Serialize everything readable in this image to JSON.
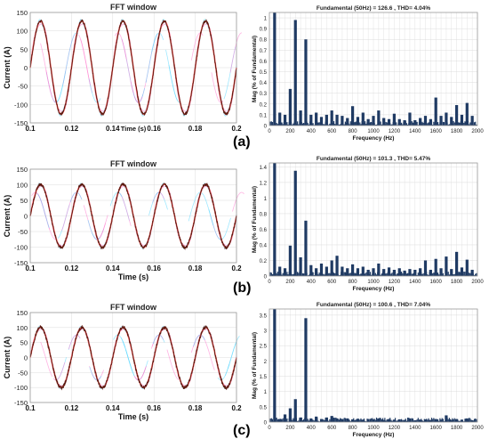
{
  "panel_labels": [
    "(a)",
    "(b)",
    "(c)"
  ],
  "colors": {
    "waveform_main": "#5a1a10",
    "waveform_trace": "#ff6060",
    "harmonics_halo_pink": "#ff80d0",
    "harmonics_halo_cyan": "#60d8ff",
    "spectrum_bars": "#1f3a63",
    "grid": "#dcdcdc"
  },
  "chart_data": [
    {
      "panel": "(a)",
      "type": "line",
      "title": "FFT window",
      "xlabel": "Time (s)",
      "ylabel": "Current (A)",
      "xlim": [
        0.1,
        0.2
      ],
      "ylim": [
        -150,
        150
      ],
      "xticks": [
        "0.1",
        "0.12",
        "0.14",
        "0.16",
        "0.18",
        "0.2"
      ],
      "yticks": [
        "150",
        "100",
        "50",
        "0",
        "-50",
        "-100",
        "-150"
      ],
      "amplitude": 126.6,
      "frequency_hz": 50,
      "noise": 4,
      "grid": true
    },
    {
      "panel": "(a)",
      "type": "bar",
      "title": "Fundamental (50Hz) = 126.6 , THD= 4.04%",
      "xlabel": "Frequency (Hz)",
      "ylabel": "Mag (% of Fundamental)",
      "xlim": [
        0,
        2000
      ],
      "ylim": [
        0,
        1.05
      ],
      "xticks": [
        "0",
        "200",
        "400",
        "600",
        "800",
        "1000",
        "1200",
        "1400",
        "1600",
        "1800",
        "2000"
      ],
      "yticks": [
        "1",
        "0.9",
        "0.8",
        "0.7",
        "0.6",
        "0.5",
        "0.4",
        "0.3",
        "0.2",
        "0.1",
        "0"
      ],
      "x": [
        50,
        100,
        150,
        200,
        250,
        300,
        350,
        400,
        450,
        500,
        550,
        600,
        650,
        700,
        750,
        800,
        850,
        900,
        950,
        1000,
        1050,
        1100,
        1150,
        1200,
        1250,
        1300,
        1350,
        1400,
        1450,
        1500,
        1550,
        1600,
        1650,
        1700,
        1750,
        1800,
        1850,
        1900,
        1950
      ],
      "values": [
        1.05,
        0.12,
        0.1,
        0.34,
        0.98,
        0.14,
        0.8,
        0.1,
        0.12,
        0.08,
        0.1,
        0.14,
        0.1,
        0.09,
        0.07,
        0.18,
        0.08,
        0.12,
        0.06,
        0.09,
        0.14,
        0.07,
        0.06,
        0.11,
        0.06,
        0.05,
        0.12,
        0.05,
        0.07,
        0.09,
        0.06,
        0.26,
        0.09,
        0.12,
        0.08,
        0.19,
        0.1,
        0.21,
        0.09
      ],
      "grid": true
    },
    {
      "panel": "(b)",
      "type": "line",
      "title": "FFT window",
      "xlabel": "Time (s)",
      "ylabel": "Current (A)",
      "xlim": [
        0.1,
        0.2
      ],
      "ylim": [
        -150,
        150
      ],
      "xticks": [
        "0.1",
        "0.12",
        "0.14",
        "0.16",
        "0.18",
        "0.2"
      ],
      "yticks": [
        "150",
        "100",
        "50",
        "0",
        "-50",
        "-100",
        "-150"
      ],
      "amplitude": 101.3,
      "frequency_hz": 50,
      "noise": 5,
      "grid": true
    },
    {
      "panel": "(b)",
      "type": "bar",
      "title": "Fundamental (50Hz) = 101.3 , THD= 5.47%",
      "xlabel": "Frequency (Hz)",
      "ylabel": "Mag (% of Fundamental)",
      "xlim": [
        0,
        2000
      ],
      "ylim": [
        0,
        1.45
      ],
      "xticks": [
        "0",
        "200",
        "400",
        "600",
        "800",
        "1000",
        "1200",
        "1400",
        "1600",
        "1800",
        "2000"
      ],
      "yticks": [
        "1.4",
        "1.2",
        "1",
        "0.8",
        "0.6",
        "0.4",
        "0.2",
        "0"
      ],
      "x": [
        50,
        100,
        150,
        200,
        250,
        300,
        350,
        400,
        450,
        500,
        550,
        600,
        650,
        700,
        750,
        800,
        850,
        900,
        950,
        1000,
        1050,
        1100,
        1150,
        1200,
        1250,
        1300,
        1350,
        1400,
        1450,
        1500,
        1550,
        1600,
        1650,
        1700,
        1750,
        1800,
        1850,
        1900,
        1950
      ],
      "values": [
        1.45,
        0.12,
        0.1,
        0.39,
        1.35,
        0.24,
        0.71,
        0.14,
        0.1,
        0.16,
        0.12,
        0.2,
        0.26,
        0.12,
        0.1,
        0.15,
        0.1,
        0.12,
        0.08,
        0.1,
        0.16,
        0.09,
        0.11,
        0.08,
        0.1,
        0.07,
        0.09,
        0.08,
        0.1,
        0.2,
        0.08,
        0.22,
        0.1,
        0.25,
        0.09,
        0.31,
        0.11,
        0.21,
        0.08
      ],
      "grid": true
    },
    {
      "panel": "(c)",
      "type": "line",
      "title": "FFT window",
      "xlabel": "Time (s)",
      "ylabel": "Current (A)",
      "xlim": [
        0.1,
        0.2
      ],
      "ylim": [
        -150,
        150
      ],
      "xticks": [
        "0.1",
        "0.12",
        "0.14",
        "0.16",
        "0.18",
        "0.2"
      ],
      "yticks": [
        "150",
        "100",
        "50",
        "0",
        "-50",
        "-100",
        "-150"
      ],
      "amplitude": 100.6,
      "frequency_hz": 50,
      "noise": 6,
      "grid": true
    },
    {
      "panel": "(c)",
      "type": "bar",
      "title": "Fundamental (50Hz) = 100.6 , THD= 7.04%",
      "xlabel": "Frequency (Hz)",
      "ylabel": "Mag (% of Fundamental)",
      "xlim": [
        0,
        2000
      ],
      "ylim": [
        0,
        3.7
      ],
      "xticks": [
        "0",
        "200",
        "400",
        "600",
        "800",
        "1000",
        "1200",
        "1400",
        "1600",
        "1800",
        "2000"
      ],
      "yticks": [
        "3.5",
        "3",
        "2.5",
        "2",
        "1.5",
        "1",
        "0.5",
        "0"
      ],
      "x": [
        50,
        100,
        150,
        200,
        250,
        300,
        350,
        400,
        450,
        500,
        550,
        600,
        650,
        700,
        750,
        800,
        850,
        900,
        950,
        1000,
        1050,
        1100,
        1150,
        1200,
        1250,
        1300,
        1350,
        1400,
        1450,
        1500,
        1550,
        1600,
        1650,
        1700,
        1750,
        1800,
        1850,
        1900,
        1950
      ],
      "values": [
        3.7,
        0.1,
        0.25,
        0.45,
        0.75,
        0.15,
        3.4,
        0.12,
        0.18,
        0.1,
        0.15,
        0.2,
        0.12,
        0.1,
        0.12,
        0.09,
        0.11,
        0.08,
        0.1,
        0.09,
        0.12,
        0.07,
        0.1,
        0.08,
        0.09,
        0.07,
        0.12,
        0.06,
        0.08,
        0.09,
        0.07,
        0.1,
        0.08,
        0.22,
        0.07,
        0.1,
        0.08,
        0.12,
        0.06
      ],
      "grid": true
    }
  ]
}
